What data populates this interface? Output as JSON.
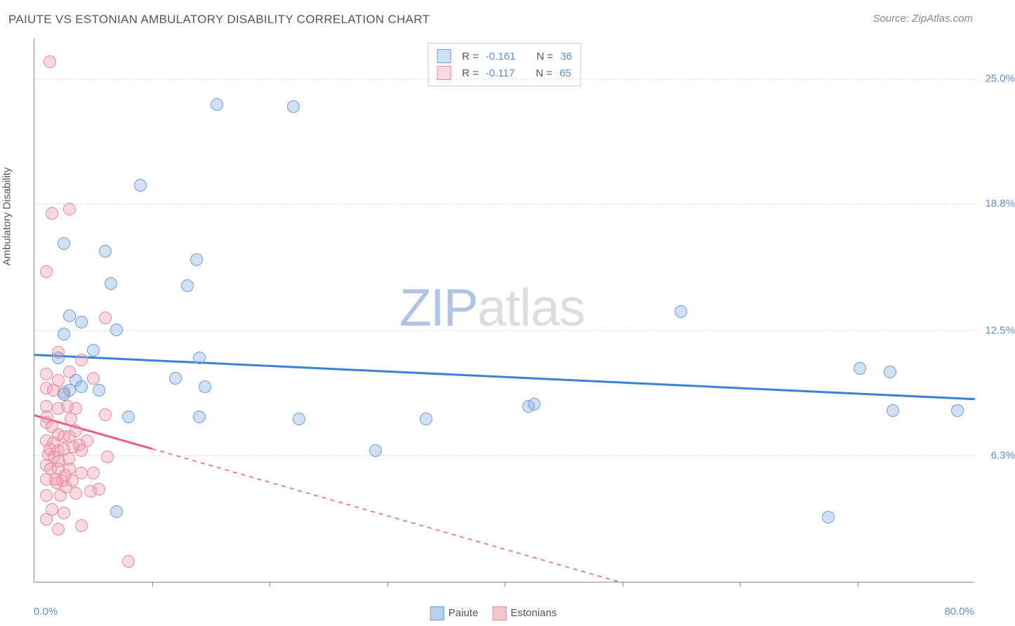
{
  "title": "PAIUTE VS ESTONIAN AMBULATORY DISABILITY CORRELATION CHART",
  "source": "Source: ZipAtlas.com",
  "y_axis_title": "Ambulatory Disability",
  "watermark": {
    "zip": "ZIP",
    "atlas": "atlas"
  },
  "chart": {
    "type": "scatter",
    "xlim": [
      0,
      80
    ],
    "ylim": [
      0,
      27
    ],
    "x_min_label": "0.0%",
    "x_max_label": "80.0%",
    "x_ticks": [
      10,
      20,
      30,
      40,
      50,
      60,
      70
    ],
    "y_ticks": [
      {
        "value": 6.3,
        "label": "6.3%"
      },
      {
        "value": 12.5,
        "label": "12.5%"
      },
      {
        "value": 18.8,
        "label": "18.8%"
      },
      {
        "value": 25.0,
        "label": "25.0%"
      }
    ],
    "grid_color": "#dddddd",
    "point_radius": 9,
    "series": [
      {
        "name": "Paiute",
        "fill": "rgba(122,170,222,0.35)",
        "stroke": "#6a9fd4",
        "r_value": "-0.161",
        "n_value": "36",
        "trend": {
          "y_at_x0": 11.3,
          "y_at_x80": 9.1,
          "stroke": "#3b82d6",
          "width": 3,
          "dash": "none"
        },
        "points": [
          [
            15.5,
            23.7
          ],
          [
            22,
            23.6
          ],
          [
            9,
            19.7
          ],
          [
            2.5,
            16.8
          ],
          [
            6,
            16.4
          ],
          [
            13.8,
            16
          ],
          [
            6.5,
            14.8
          ],
          [
            13,
            14.7
          ],
          [
            3,
            13.2
          ],
          [
            4,
            12.9
          ],
          [
            55,
            13.4
          ],
          [
            7,
            12.5
          ],
          [
            5,
            11.5
          ],
          [
            2,
            11.1
          ],
          [
            14,
            11.1
          ],
          [
            3.5,
            10
          ],
          [
            3,
            9.5
          ],
          [
            2.5,
            9.3
          ],
          [
            12,
            10.1
          ],
          [
            8,
            8.2
          ],
          [
            14,
            8.2
          ],
          [
            22.5,
            8.1
          ],
          [
            33.3,
            8.1
          ],
          [
            73,
            8.5
          ],
          [
            78.5,
            8.5
          ],
          [
            70.2,
            10.6
          ],
          [
            72.8,
            10.4
          ],
          [
            42,
            8.7
          ],
          [
            42.5,
            8.8
          ],
          [
            29,
            6.5
          ],
          [
            7,
            3.5
          ],
          [
            67.5,
            3.2
          ],
          [
            4,
            9.7
          ],
          [
            2.5,
            12.3
          ],
          [
            5.5,
            9.5
          ],
          [
            14.5,
            9.7
          ]
        ]
      },
      {
        "name": "Estonians",
        "fill": "rgba(240,150,170,0.35)",
        "stroke": "#e38aa0",
        "r_value": "-0.117",
        "n_value": "65",
        "trend": {
          "y_at_x0": 8.3,
          "y_at_x80": -5,
          "stroke": "#ef5b7e",
          "width": 3,
          "dash_after_x": 10,
          "dash": "6,6"
        },
        "points": [
          [
            1.3,
            25.8
          ],
          [
            1.5,
            18.3
          ],
          [
            3,
            18.5
          ],
          [
            1,
            15.4
          ],
          [
            6,
            13.1
          ],
          [
            2,
            11.4
          ],
          [
            4,
            11
          ],
          [
            1,
            10.3
          ],
          [
            3,
            10.4
          ],
          [
            2,
            10
          ],
          [
            5,
            10.1
          ],
          [
            1,
            9.6
          ],
          [
            1.6,
            9.5
          ],
          [
            2.5,
            9.4
          ],
          [
            1,
            8.7
          ],
          [
            2,
            8.6
          ],
          [
            2.8,
            8.7
          ],
          [
            3.5,
            8.6
          ],
          [
            1,
            7.9
          ],
          [
            1.5,
            7.7
          ],
          [
            6,
            8.3
          ],
          [
            2,
            7.3
          ],
          [
            2.5,
            7.2
          ],
          [
            3,
            7.2
          ],
          [
            1,
            7
          ],
          [
            1.6,
            6.9
          ],
          [
            2,
            6.5
          ],
          [
            2.5,
            6.6
          ],
          [
            3.3,
            6.7
          ],
          [
            4,
            6.5
          ],
          [
            1.2,
            6.3
          ],
          [
            1.7,
            6.2
          ],
          [
            2.1,
            6
          ],
          [
            2.9,
            6.1
          ],
          [
            1,
            5.8
          ],
          [
            1.4,
            5.6
          ],
          [
            2,
            5.6
          ],
          [
            3,
            5.6
          ],
          [
            4,
            5.4
          ],
          [
            5,
            5.4
          ],
          [
            1,
            5.1
          ],
          [
            1.8,
            5.1
          ],
          [
            2.4,
            5
          ],
          [
            3.2,
            5
          ],
          [
            1,
            4.3
          ],
          [
            2.2,
            4.3
          ],
          [
            3.5,
            4.4
          ],
          [
            4.8,
            4.5
          ],
          [
            5.5,
            4.6
          ],
          [
            1.5,
            3.6
          ],
          [
            2.5,
            3.4
          ],
          [
            4,
            2.8
          ],
          [
            6.2,
            6.2
          ],
          [
            1,
            3.1
          ],
          [
            2,
            2.6
          ],
          [
            8,
            1
          ],
          [
            3.5,
            7.5
          ],
          [
            1.1,
            8.2
          ],
          [
            4.5,
            7
          ],
          [
            2.6,
            5.3
          ],
          [
            3.8,
            6.8
          ],
          [
            1.3,
            6.6
          ],
          [
            2.7,
            4.7
          ],
          [
            3.1,
            8.1
          ],
          [
            1.9,
            4.9
          ]
        ]
      }
    ]
  },
  "bottom_legend": [
    {
      "label": "Paiute",
      "fill": "rgba(122,170,222,0.55)",
      "stroke": "#6a9fd4"
    },
    {
      "label": "Estonians",
      "fill": "rgba(240,150,170,0.55)",
      "stroke": "#e38aa0"
    }
  ]
}
